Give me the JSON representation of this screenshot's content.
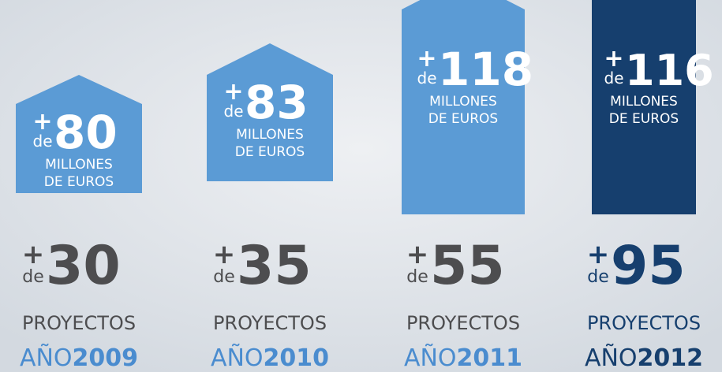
{
  "items": [
    {
      "plus": "+",
      "de": "de",
      "amount": 80,
      "unit": "MILLONES",
      "unit2": "DE EUROS",
      "projects_plus": "+",
      "projects_de": "de",
      "projects": 30,
      "projects_label": "PROYECTOS",
      "year_prefix": "AÑO",
      "year": "2009",
      "color": "#5b9bd5"
    },
    {
      "plus": "+",
      "de": "de",
      "amount": 83,
      "unit": "MILLONES",
      "unit2": "DE EUROS",
      "projects_plus": "+",
      "projects_de": "de",
      "projects": 35,
      "projects_label": "PROYECTOS",
      "year_prefix": "AÑO",
      "year": "2010",
      "color": "#5b9bd5"
    },
    {
      "plus": "+",
      "de": "de",
      "amount": 118,
      "unit": "MILLONES",
      "unit2": "DE EUROS",
      "projects_plus": "+",
      "projects_de": "de",
      "projects": 55,
      "projects_label": "PROYECTOS",
      "year_prefix": "AÑO",
      "year": "2011",
      "color": "#5b9bd5"
    },
    {
      "plus": "+",
      "de": "de",
      "amount": 116,
      "unit": "MILLONES",
      "unit2": "DE EUROS",
      "projects_plus": "+",
      "projects_de": "de",
      "projects": 95,
      "projects_label": "PROYECTOS",
      "year_prefix": "AÑO",
      "year": "2012",
      "color": "#163f6e"
    }
  ]
}
